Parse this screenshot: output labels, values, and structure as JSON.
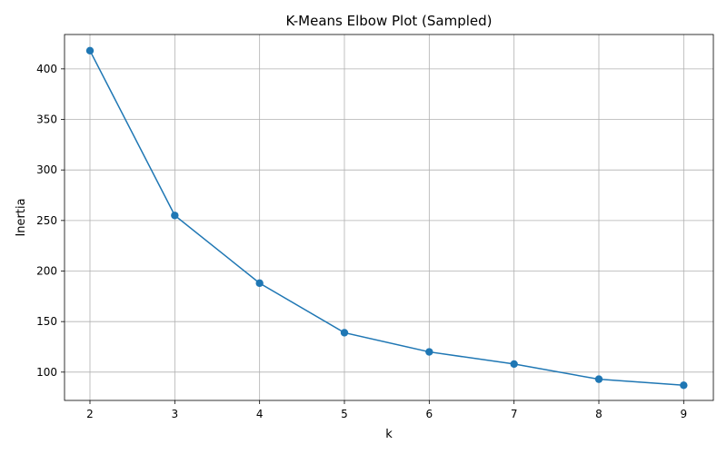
{
  "chart_data": {
    "type": "line",
    "title": "K-Means Elbow Plot (Sampled)",
    "xlabel": "k",
    "ylabel": "Inertia",
    "x": [
      2,
      3,
      4,
      5,
      6,
      7,
      8,
      9
    ],
    "series": [
      {
        "values": [
          418,
          255,
          188,
          139,
          120,
          108,
          93,
          87
        ]
      }
    ],
    "xticks": [
      2,
      3,
      4,
      5,
      6,
      7,
      8,
      9
    ],
    "yticks": [
      100,
      150,
      200,
      250,
      300,
      350,
      400
    ],
    "xlim": [
      1.7,
      9.35
    ],
    "ylim": [
      72,
      434
    ],
    "grid": true,
    "marker": "circle",
    "color": "#1f77b4"
  }
}
